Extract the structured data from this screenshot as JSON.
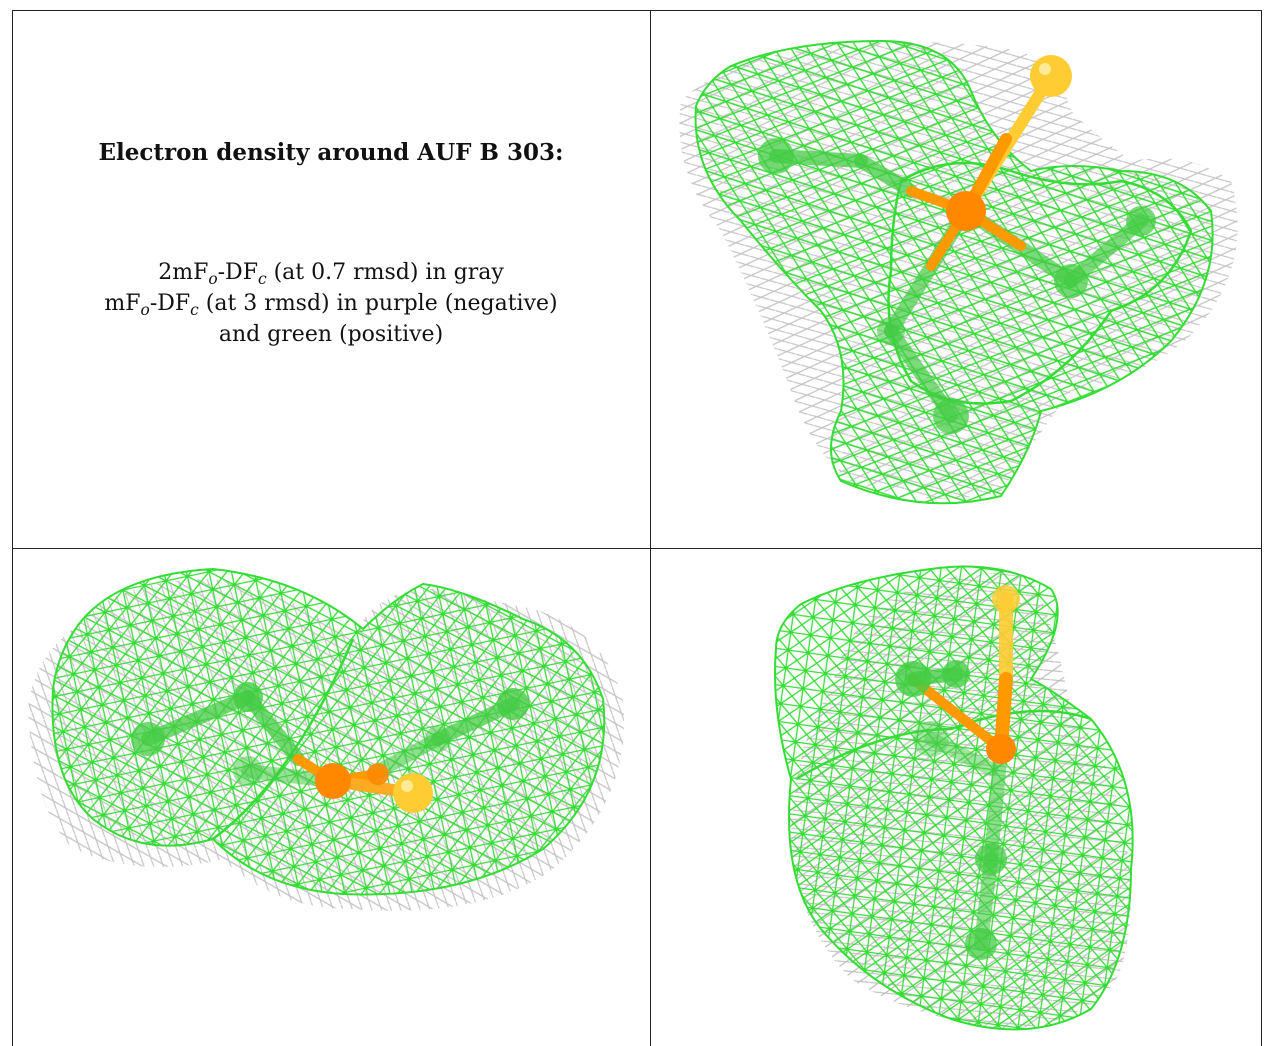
{
  "caption": {
    "title": "Electron density around AUF B 303:",
    "line1_prefix": "2mF",
    "line1_sub1": "o",
    "line1_mid": "-DF",
    "line1_sub2": "c",
    "line1_suffix": " (at 0.7 rmsd) in gray",
    "line2_prefix": "mF",
    "line2_sub1": "o",
    "line2_mid": "-DF",
    "line2_sub2": "c",
    "line2_suffix": " (at 3 rmsd) in purple (negative)",
    "line3": "and green (positive)"
  },
  "colors": {
    "positive_mesh": "#33dd33",
    "gray_mesh": "#b4b4b4",
    "carbon": "#44cc44",
    "phosphorus": "#ff8800",
    "sulfur": "#ffcc33"
  },
  "panels": [
    {
      "name": "view-top-right",
      "icon": "electron-density-mesh-view-1"
    },
    {
      "name": "view-bottom-left",
      "icon": "electron-density-mesh-view-2"
    },
    {
      "name": "view-bottom-right",
      "icon": "electron-density-mesh-view-3"
    }
  ]
}
